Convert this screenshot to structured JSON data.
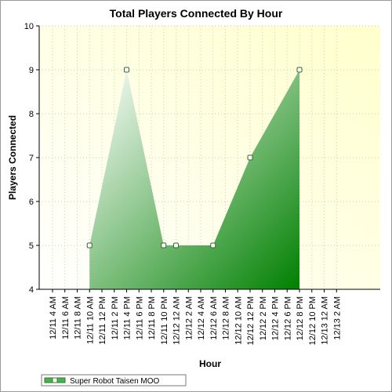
{
  "chart_data": {
    "type": "area",
    "title": "Total Players Connected By Hour",
    "xlabel": "Hour",
    "ylabel": "Players Connected",
    "ylim": [
      4,
      10
    ],
    "yticks": [
      4,
      5,
      6,
      7,
      8,
      9,
      10
    ],
    "categories": [
      "12/11 4 AM",
      "12/11 6 AM",
      "12/11 8 AM",
      "12/11 10 AM",
      "12/11 12 PM",
      "12/11 2 PM",
      "12/11 4 PM",
      "12/11 6 PM",
      "12/11 8 PM",
      "12/11 10 PM",
      "12/12 12 AM",
      "12/12 2 AM",
      "12/12 4 AM",
      "12/12 6 AM",
      "12/12 8 AM",
      "12/12 10 AM",
      "12/12 12 PM",
      "12/12 2 PM",
      "12/12 4 PM",
      "12/12 6 PM",
      "12/12 8 PM",
      "12/12 10 PM",
      "12/13 12 AM",
      "12/13 2 AM"
    ],
    "series": [
      {
        "name": "Super Robot Taisen MOO",
        "color": "#118811",
        "points": [
          {
            "x": "12/11 10 AM",
            "y": 5
          },
          {
            "x": "12/11 4 PM",
            "y": 9
          },
          {
            "x": "12/11 10 PM",
            "y": 5
          },
          {
            "x": "12/12 12 AM",
            "y": 5
          },
          {
            "x": "12/12 6 AM",
            "y": 5
          },
          {
            "x": "12/12 12 PM",
            "y": 7
          },
          {
            "x": "12/12 8 PM",
            "y": 9
          }
        ]
      }
    ],
    "grid": true,
    "legend_position": "bottom-left"
  }
}
